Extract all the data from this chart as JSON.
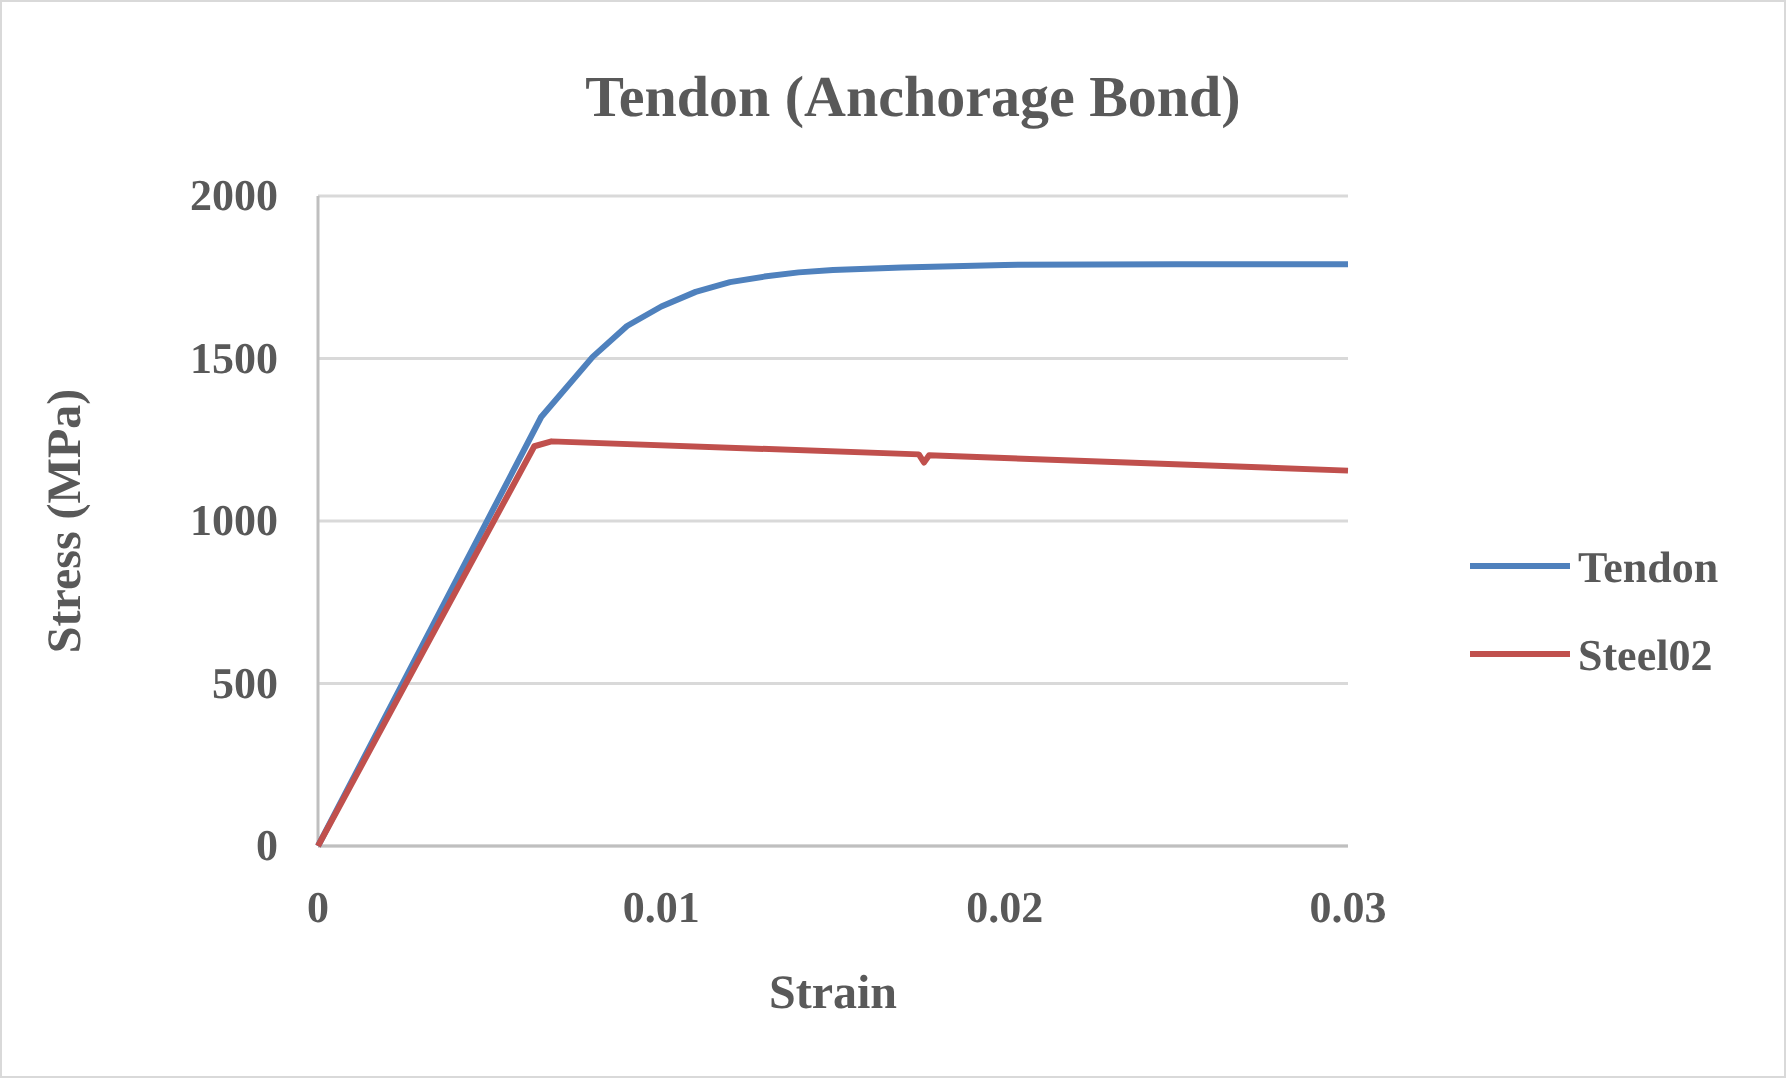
{
  "chart_data": {
    "type": "line",
    "title": "Tendon (Anchorage Bond)",
    "xlabel": "Strain",
    "ylabel": "Stress (MPa)",
    "xlim": [
      0,
      0.03
    ],
    "xticks": [
      0,
      0.01,
      0.02,
      0.03
    ],
    "ylim": [
      0,
      2000
    ],
    "yticks": [
      0,
      500,
      1000,
      1500,
      2000
    ],
    "grid": "y",
    "legend": "right",
    "marker": "none",
    "line_style": "solid",
    "series": [
      {
        "name": "Tendon",
        "color": "#4f81bd",
        "x": [
          0,
          0.0065,
          0.008,
          0.009,
          0.01,
          0.011,
          0.012,
          0.013,
          0.014,
          0.015,
          0.017,
          0.02,
          0.025,
          0.03
        ],
        "values": [
          0,
          1320,
          1505,
          1600,
          1660,
          1705,
          1735,
          1752,
          1765,
          1772,
          1780,
          1788,
          1790,
          1790
        ]
      },
      {
        "name": "Steel02",
        "color": "#c0504d",
        "x": [
          0,
          0.0063,
          0.0068,
          0.0175,
          0.01765,
          0.0178,
          0.03
        ],
        "values": [
          0,
          1230,
          1245,
          1205,
          1180,
          1202,
          1155
        ]
      }
    ]
  }
}
